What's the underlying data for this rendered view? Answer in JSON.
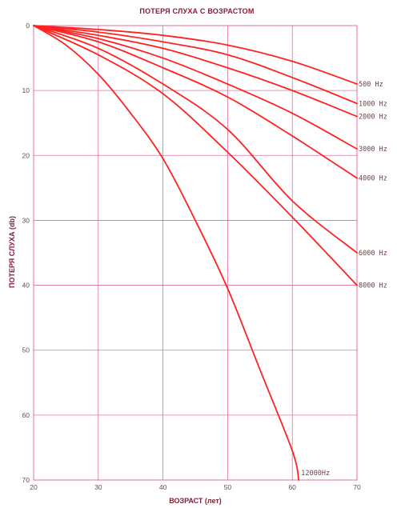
{
  "chart_data": {
    "type": "line",
    "title": "ПОТЕРЯ СЛУХА С ВОЗРАСТОМ",
    "xlabel": "ВОЗРАСТ (лет)",
    "ylabel": "ПОТЕРЯ СЛУХА (db)",
    "xlim": [
      20,
      70
    ],
    "ylim": [
      0,
      70
    ],
    "y_inverted": true,
    "x_ticks": [
      "20",
      "30",
      "40",
      "50",
      "60",
      "70"
    ],
    "y_ticks": [
      "0",
      "10",
      "20",
      "30",
      "40",
      "50",
      "60",
      "70"
    ],
    "grid": true,
    "line_color": "#ff2222",
    "grid_color": "#df6fa0",
    "series": [
      {
        "name": "500 Hz",
        "x": [
          20,
          30,
          40,
          50,
          60,
          70
        ],
        "values": [
          0,
          0.6,
          1.5,
          3,
          5.5,
          9
        ]
      },
      {
        "name": "1000 Hz",
        "x": [
          20,
          30,
          40,
          50,
          60,
          70
        ],
        "values": [
          0,
          1,
          2.5,
          4.5,
          8,
          12
        ]
      },
      {
        "name": "2000 Hz",
        "x": [
          20,
          30,
          40,
          50,
          60,
          70
        ],
        "values": [
          0,
          1.5,
          3.5,
          6.5,
          10,
          14
        ]
      },
      {
        "name": "3000 Hz",
        "x": [
          20,
          30,
          40,
          50,
          60,
          70
        ],
        "values": [
          0,
          2,
          5,
          9,
          13.5,
          19
        ]
      },
      {
        "name": "4000 Hz",
        "x": [
          20,
          30,
          40,
          50,
          60,
          70
        ],
        "values": [
          0,
          2.5,
          6.5,
          11,
          17,
          23.5
        ]
      },
      {
        "name": "6000 Hz",
        "x": [
          20,
          30,
          40,
          50,
          60,
          70
        ],
        "values": [
          0,
          3.5,
          9,
          16,
          27,
          35
        ]
      },
      {
        "name": "8000 Hz",
        "x": [
          20,
          30,
          40,
          50,
          60,
          70
        ],
        "values": [
          0,
          4.5,
          10.5,
          19.5,
          29.5,
          40
        ]
      },
      {
        "name": "12000Hz",
        "x": [
          20,
          25,
          30,
          35,
          40,
          45,
          50,
          55,
          60,
          61
        ],
        "values": [
          0,
          3,
          7.5,
          13.5,
          20.5,
          30,
          40.5,
          53,
          65.5,
          70
        ]
      }
    ]
  }
}
